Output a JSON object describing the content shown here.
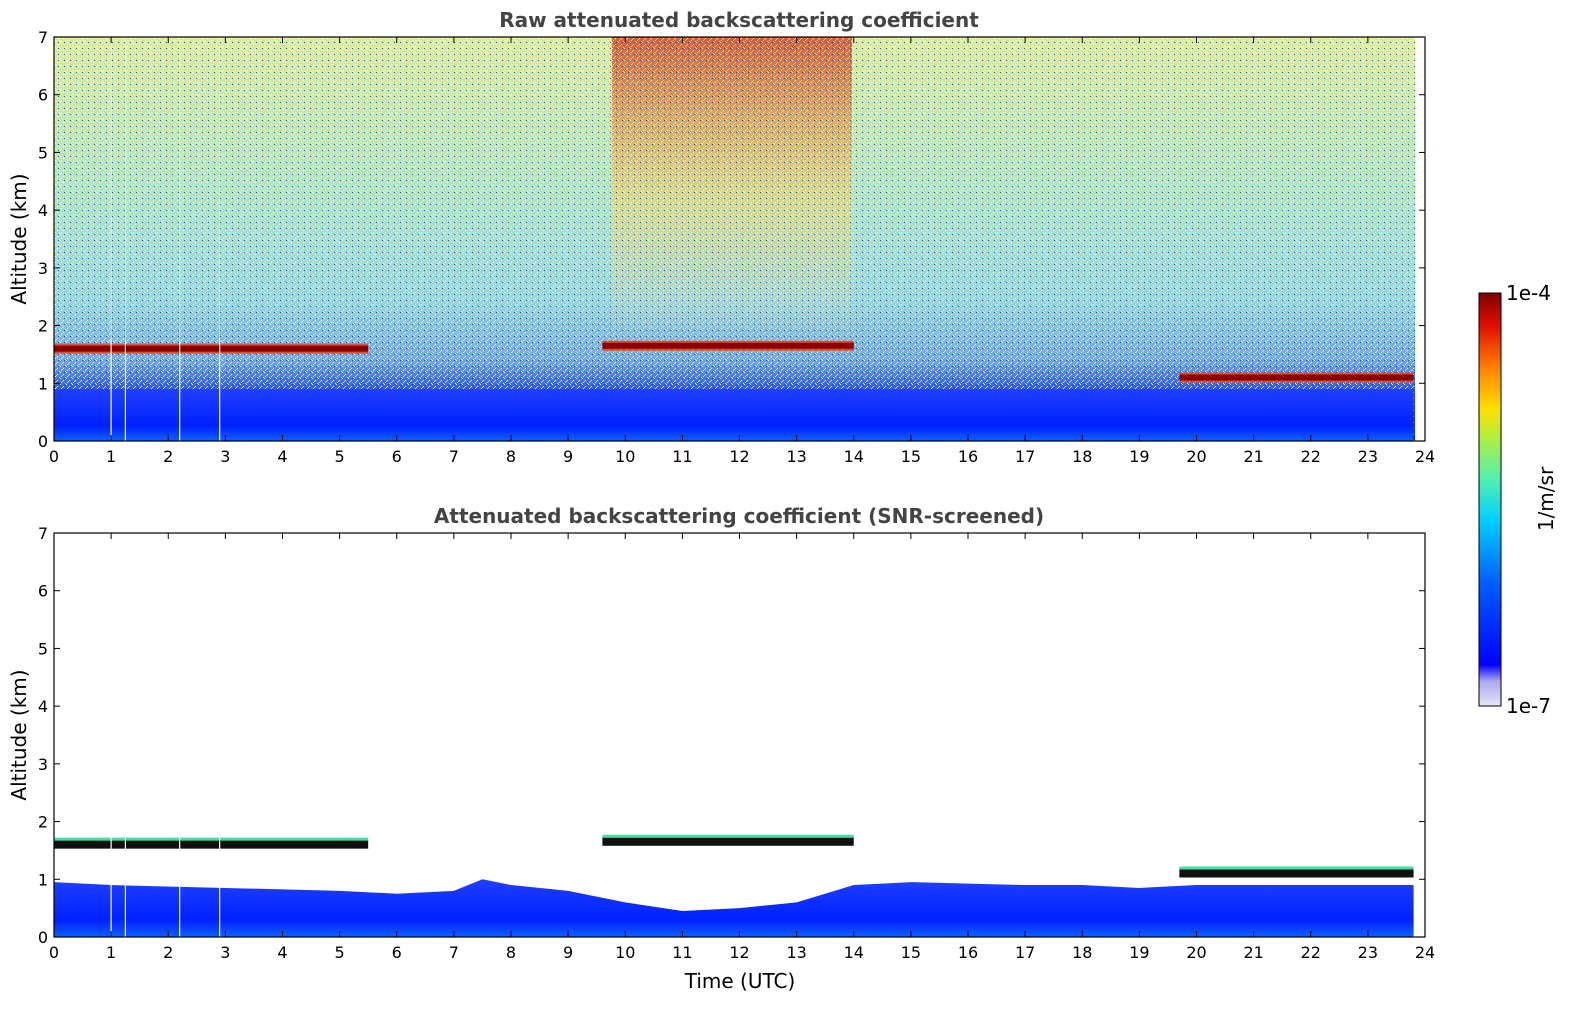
{
  "chart_data": [
    {
      "type": "heatmap",
      "title": "Raw attenuated backscattering coefficient",
      "xlabel": "",
      "ylabel": "Altitude (km)",
      "xlim": [
        0,
        24
      ],
      "ylim": [
        0,
        7
      ],
      "xticks": [
        "0",
        "1",
        "2",
        "3",
        "4",
        "5",
        "6",
        "7",
        "8",
        "9",
        "10",
        "11",
        "12",
        "13",
        "14",
        "15",
        "16",
        "17",
        "18",
        "19",
        "20",
        "21",
        "22",
        "23",
        "24"
      ],
      "yticks": [
        "0",
        "1",
        "2",
        "3",
        "4",
        "5",
        "6",
        "7"
      ],
      "cloud_layers": [
        {
          "t_start": 0.0,
          "t_end": 5.5,
          "altitude_km": 1.6
        },
        {
          "t_start": 9.6,
          "t_end": 14.0,
          "altitude_km": 1.65
        },
        {
          "t_start": 19.7,
          "t_end": 23.8,
          "altitude_km": 1.1
        }
      ],
      "boundary_layer_top_km": 0.9
    },
    {
      "type": "heatmap",
      "title": "Attenuated backscattering coefficient (SNR-screened)",
      "xlabel": "Time (UTC)",
      "ylabel": "Altitude (km)",
      "xlim": [
        0,
        24
      ],
      "ylim": [
        0,
        7
      ],
      "xticks": [
        "0",
        "1",
        "2",
        "3",
        "4",
        "5",
        "6",
        "7",
        "8",
        "9",
        "10",
        "11",
        "12",
        "13",
        "14",
        "15",
        "16",
        "17",
        "18",
        "19",
        "20",
        "21",
        "22",
        "23",
        "24"
      ],
      "yticks": [
        "0",
        "1",
        "2",
        "3",
        "4",
        "5",
        "6",
        "7"
      ],
      "cloud_layers": [
        {
          "t_start": 0.0,
          "t_end": 5.5,
          "altitude_km": 1.6
        },
        {
          "t_start": 9.6,
          "t_end": 14.0,
          "altitude_km": 1.65
        },
        {
          "t_start": 19.7,
          "t_end": 23.8,
          "altitude_km": 1.1
        }
      ],
      "boundary_layer_top_km": 0.9
    }
  ],
  "colorbar": {
    "label": "1/m/sr",
    "max_label": "1e-4",
    "min_label": "1e-7",
    "colors": [
      "#e6e6f5",
      "#c8c8f0",
      "#aaaaee",
      "#6c6cf2",
      "#0000ff",
      "#0020ff",
      "#0050ff",
      "#0080ff",
      "#00a8ff",
      "#00d0ff",
      "#20e8e0",
      "#60f0a0",
      "#90f070",
      "#c0f040",
      "#e8f020",
      "#ffe000",
      "#ffb000",
      "#ff8000",
      "#ff4000",
      "#e01000",
      "#b00000",
      "#800000"
    ]
  }
}
